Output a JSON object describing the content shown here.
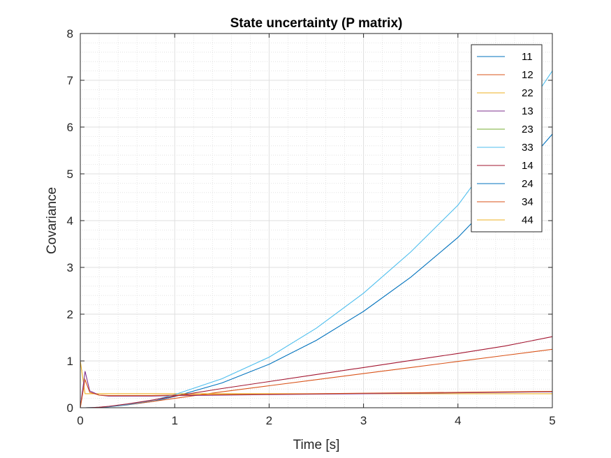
{
  "chart_data": {
    "type": "line",
    "title": "State uncertainty (P matrix)",
    "xlabel": "Time [s]",
    "ylabel": "Covariance",
    "xlim": [
      0,
      5
    ],
    "ylim": [
      0,
      8
    ],
    "xticks": [
      "0",
      "1",
      "2",
      "3",
      "4",
      "5"
    ],
    "yticks": [
      "0",
      "1",
      "2",
      "3",
      "4",
      "5",
      "6",
      "7",
      "8"
    ],
    "grid": "major and minor",
    "legend": "top-right",
    "x": [
      0,
      0.05,
      0.1,
      0.2,
      0.3,
      0.5,
      0.75,
      1,
      1.5,
      2,
      2.5,
      3,
      3.5,
      4,
      4.5,
      5
    ],
    "series": [
      {
        "name": "11",
        "color": "#0072BD",
        "values": [
          0,
          0,
          0.001,
          0.008,
          0.02,
          0.06,
          0.13,
          0.24,
          0.53,
          0.93,
          1.44,
          2.06,
          2.79,
          3.64,
          4.69,
          5.85
        ]
      },
      {
        "name": "12",
        "color": "#D95319",
        "values": [
          0,
          0,
          0.001,
          0.01,
          0.025,
          0.065,
          0.13,
          0.2,
          0.34,
          0.47,
          0.6,
          0.73,
          0.86,
          0.99,
          1.12,
          1.25
        ]
      },
      {
        "name": "22",
        "color": "#EDB120",
        "values": [
          1.0,
          0.3,
          0.3,
          0.3,
          0.3,
          0.3,
          0.3,
          0.3,
          0.3,
          0.3,
          0.3,
          0.3,
          0.3,
          0.3,
          0.3,
          0.3
        ]
      },
      {
        "name": "13",
        "color": "#7E2F8E",
        "values": [
          0,
          0.78,
          0.36,
          0.27,
          0.25,
          0.25,
          0.25,
          0.26,
          0.27,
          0.28,
          0.29,
          0.3,
          0.31,
          0.32,
          0.33,
          0.34
        ]
      },
      {
        "name": "23",
        "color": "#77AC30",
        "values": [
          0,
          0,
          0,
          0,
          0,
          0,
          0,
          0,
          0,
          0,
          0,
          0,
          0,
          0,
          0,
          0
        ]
      },
      {
        "name": "33",
        "color": "#4DBEEE",
        "values": [
          0,
          0,
          0.003,
          0.01,
          0.025,
          0.07,
          0.15,
          0.28,
          0.62,
          1.08,
          1.7,
          2.45,
          3.33,
          4.33,
          5.7,
          7.2
        ]
      },
      {
        "name": "14",
        "color": "#A2142F",
        "values": [
          0,
          0,
          0.001,
          0.01,
          0.03,
          0.08,
          0.16,
          0.25,
          0.41,
          0.56,
          0.71,
          0.86,
          1.01,
          1.16,
          1.32,
          1.52
        ]
      },
      {
        "name": "24",
        "color": "#0072BD",
        "values": [
          0,
          0,
          0,
          0,
          0,
          0,
          0,
          0,
          0,
          0,
          0,
          0,
          0,
          0,
          0,
          0
        ]
      },
      {
        "name": "34",
        "color": "#D95319",
        "values": [
          0,
          0.6,
          0.33,
          0.27,
          0.26,
          0.26,
          0.26,
          0.27,
          0.28,
          0.29,
          0.3,
          0.31,
          0.32,
          0.33,
          0.34,
          0.35
        ]
      },
      {
        "name": "44",
        "color": "#EDB120",
        "values": [
          0,
          0,
          0,
          0,
          0,
          0,
          0,
          0,
          0,
          0,
          0,
          0,
          0,
          0,
          0,
          0
        ]
      }
    ]
  }
}
